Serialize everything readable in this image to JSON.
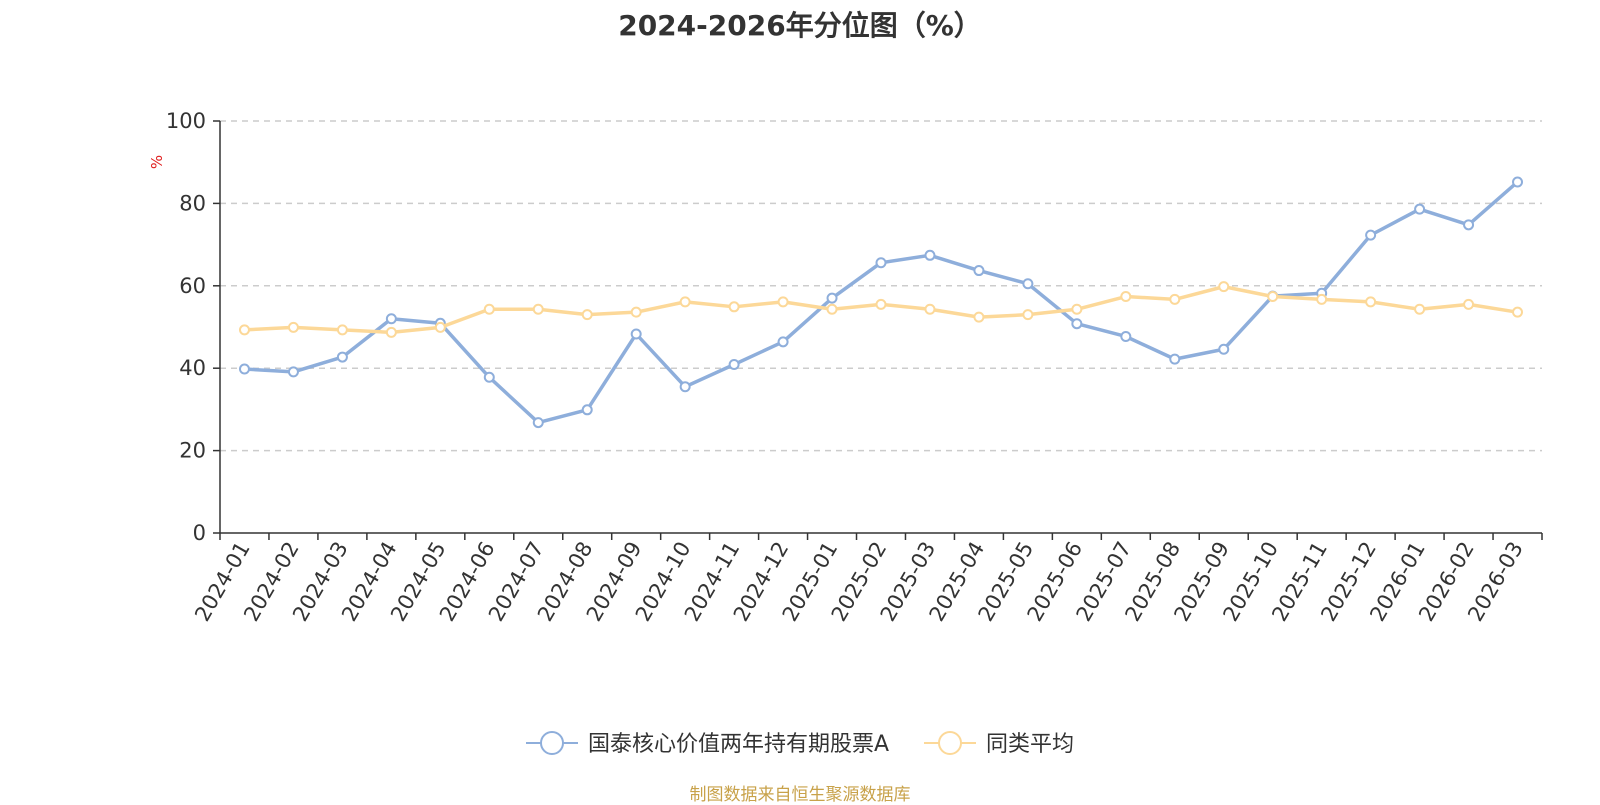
{
  "chart_data": {
    "type": "line",
    "title": "2024-2026年分位图（%）",
    "ylabel": "%",
    "ylim": [
      0,
      100
    ],
    "yticks": [
      0,
      20,
      40,
      60,
      80,
      100
    ],
    "grid": "horizontal dashed",
    "legend_position": "bottom-center",
    "x": [
      "2024-01",
      "2024-02",
      "2024-03",
      "2024-04",
      "2024-05",
      "2024-06",
      "2024-07",
      "2024-08",
      "2024-09",
      "2024-10",
      "2024-11",
      "2024-12",
      "2025-01",
      "2025-02",
      "2025-03",
      "2025-04",
      "2025-05",
      "2025-06",
      "2025-07",
      "2025-08",
      "2025-09",
      "2025-10",
      "2025-11",
      "2025-12",
      "2026-01",
      "2026-02",
      "2026-03"
    ],
    "series": [
      {
        "name": "国泰核心价值两年持有期股票A",
        "color": "#8eaedb",
        "values": [
          39.8,
          39.1,
          42.7,
          52.0,
          50.9,
          37.8,
          26.8,
          29.9,
          48.3,
          35.5,
          40.9,
          46.4,
          57.0,
          65.6,
          67.4,
          63.7,
          60.5,
          50.8,
          47.7,
          42.2,
          44.6,
          57.5,
          58.2,
          72.3,
          78.6,
          74.8,
          85.2
        ]
      },
      {
        "name": "同类平均",
        "color": "#fcd898",
        "values": [
          49.3,
          49.9,
          49.3,
          48.7,
          49.9,
          54.3,
          54.3,
          53.0,
          53.6,
          56.1,
          54.9,
          56.1,
          54.3,
          55.5,
          54.3,
          52.4,
          53.0,
          54.3,
          57.4,
          56.7,
          59.8,
          57.4,
          56.7,
          56.1,
          54.3,
          55.5,
          53.6
        ]
      }
    ]
  },
  "source_note": "制图数据来自恒生聚源数据库"
}
